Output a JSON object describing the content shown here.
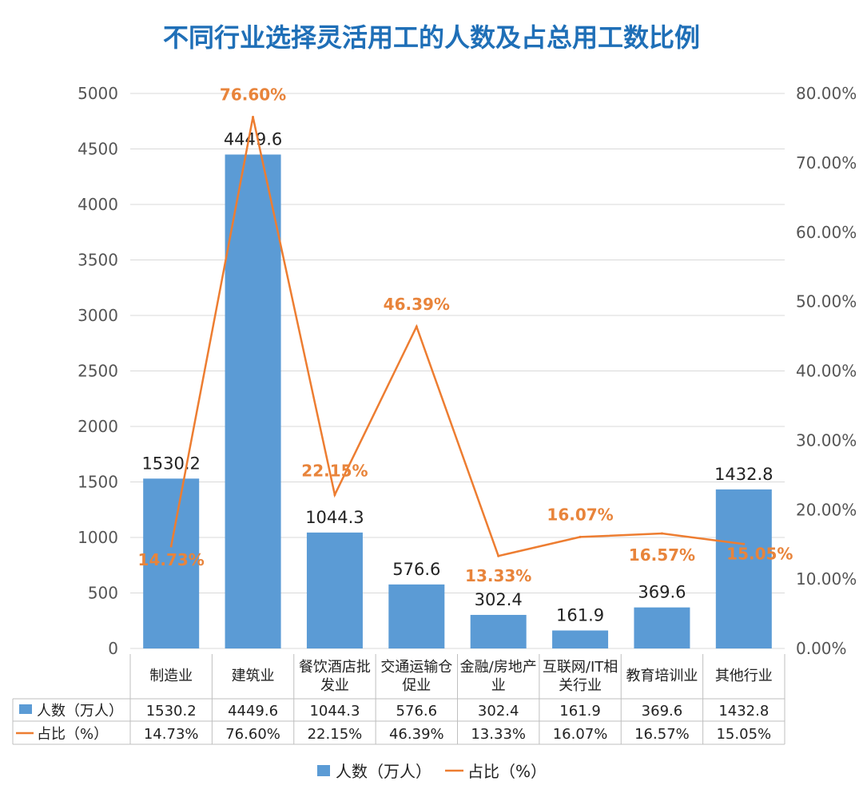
{
  "title": "不同行业选择灵活用工的人数及占总用工数比例",
  "colors": {
    "bar": "#5b9bd5",
    "line": "#ed7d31",
    "title": "#1f6fb7",
    "pct_label": "#e8843b",
    "grid": "#d9d9d9"
  },
  "chart_data": {
    "type": "bar",
    "title": "不同行业选择灵活用工的人数及占总用工数比例",
    "categories": [
      [
        "制造业"
      ],
      [
        "建筑业"
      ],
      [
        "餐饮酒店批",
        "发业"
      ],
      [
        "交通运输仓",
        "促业"
      ],
      [
        "金融/房地产",
        "业"
      ],
      [
        "互联网/IT相",
        "关行业"
      ],
      [
        "教育培训业"
      ],
      [
        "其他行业"
      ]
    ],
    "series": [
      {
        "name": "人数（万人）",
        "type": "bar",
        "axis": "left",
        "values": [
          1530.2,
          4449.6,
          1044.3,
          576.6,
          302.4,
          161.9,
          369.6,
          1432.8
        ],
        "labels": [
          "1530.2",
          "4449.6",
          "1044.3",
          "576.6",
          "302.4",
          "161.9",
          "369.6",
          "1432.8"
        ]
      },
      {
        "name": "占比（%）",
        "type": "line",
        "axis": "right",
        "values": [
          14.73,
          76.6,
          22.15,
          46.39,
          13.33,
          16.07,
          16.57,
          15.05
        ],
        "labels": [
          "14.73%",
          "76.60%",
          "22.15%",
          "46.39%",
          "13.33%",
          "16.07%",
          "16.57%",
          "15.05%"
        ]
      }
    ],
    "y_left": {
      "range": [
        0,
        5000
      ],
      "ticks": [
        "0",
        "500",
        "1000",
        "1500",
        "2000",
        "2500",
        "3000",
        "3500",
        "4000",
        "4500",
        "5000"
      ]
    },
    "y_right": {
      "range": [
        0,
        80
      ],
      "ticks": [
        "0.00%",
        "10.00%",
        "20.00%",
        "30.00%",
        "40.00%",
        "50.00%",
        "60.00%",
        "70.00%",
        "80.00%"
      ]
    },
    "grid": true,
    "legend": "bottom",
    "data_table": true
  }
}
